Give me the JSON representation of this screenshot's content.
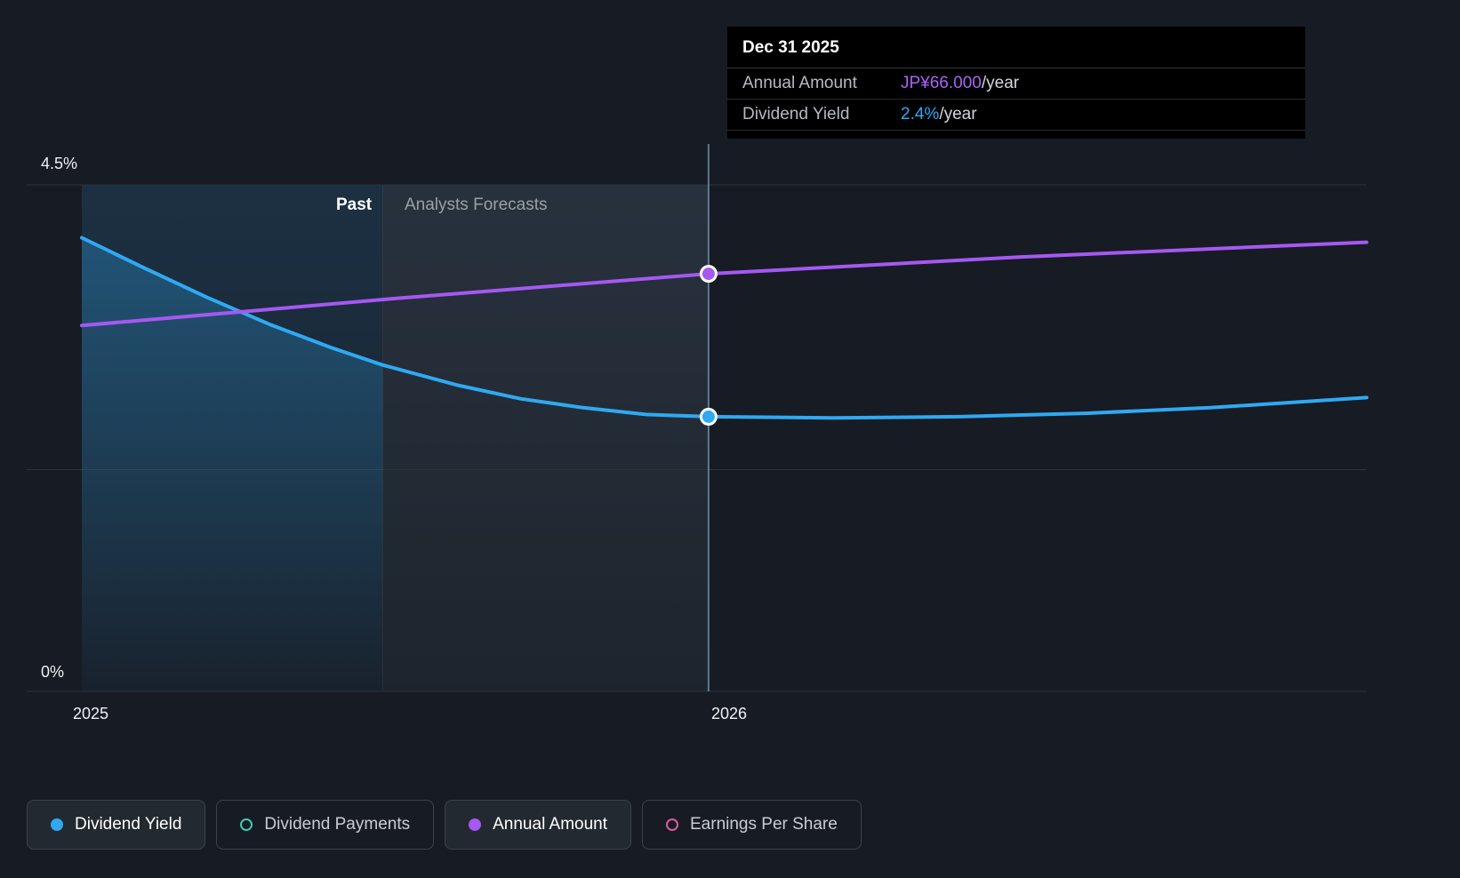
{
  "tooltip": {
    "date": "Dec 31 2025",
    "rows": [
      {
        "label": "Annual Amount",
        "value": "JP¥66.000",
        "suffix": "/year",
        "color": "#a964f7"
      },
      {
        "label": "Dividend Yield",
        "value": "2.4%",
        "suffix": "/year",
        "color": "#2fa9f2"
      }
    ]
  },
  "labels": {
    "past": "Past",
    "forecast": "Analysts Forecasts"
  },
  "legend": [
    {
      "label": "Dividend Yield",
      "color": "#2fa9f2",
      "filled": true,
      "active": true
    },
    {
      "label": "Dividend Payments",
      "color": "#3ec9b5",
      "filled": false,
      "active": false
    },
    {
      "label": "Annual Amount",
      "color": "#a558f2",
      "filled": true,
      "active": true
    },
    {
      "label": "Earnings Per Share",
      "color": "#dd5b9f",
      "filled": false,
      "active": false
    }
  ],
  "chart_data": {
    "type": "line",
    "title": "Dividend history and forecast",
    "x_axis": {
      "min": 2025,
      "max": 2027.05,
      "ticks": [
        {
          "x": 2025,
          "label": "2025"
        },
        {
          "x": 2026,
          "label": "2026"
        }
      ]
    },
    "y_axis": {
      "min": 0,
      "max": 4.5,
      "top_label": "4.5%",
      "bottom_label": "0%",
      "gridlines": [
        4.5,
        1.97,
        0
      ]
    },
    "divider_x": 2025.48,
    "hover_x": 2026,
    "series": [
      {
        "name": "Dividend Yield",
        "color": "#2fa9f2",
        "value_at_marker": "2.4%/year",
        "marker": [
          2026,
          2.44
        ],
        "points": [
          [
            2025,
            4.03
          ],
          [
            2025.1,
            3.76
          ],
          [
            2025.2,
            3.5
          ],
          [
            2025.3,
            3.26
          ],
          [
            2025.4,
            3.05
          ],
          [
            2025.48,
            2.9
          ],
          [
            2025.6,
            2.72
          ],
          [
            2025.7,
            2.6
          ],
          [
            2025.8,
            2.52
          ],
          [
            2025.9,
            2.46
          ],
          [
            2026,
            2.44
          ],
          [
            2026.2,
            2.43
          ],
          [
            2026.4,
            2.44
          ],
          [
            2026.6,
            2.47
          ],
          [
            2026.8,
            2.52
          ],
          [
            2027.05,
            2.61
          ]
        ]
      },
      {
        "name": "Annual Amount",
        "color": "#a558f2",
        "value_at_marker": "JP¥66.000/year",
        "marker": [
          2026,
          3.71
        ],
        "points": [
          [
            2025,
            3.25
          ],
          [
            2025.5,
            3.49
          ],
          [
            2026,
            3.71
          ],
          [
            2026.5,
            3.86
          ],
          [
            2027.05,
            3.99
          ]
        ]
      }
    ]
  }
}
